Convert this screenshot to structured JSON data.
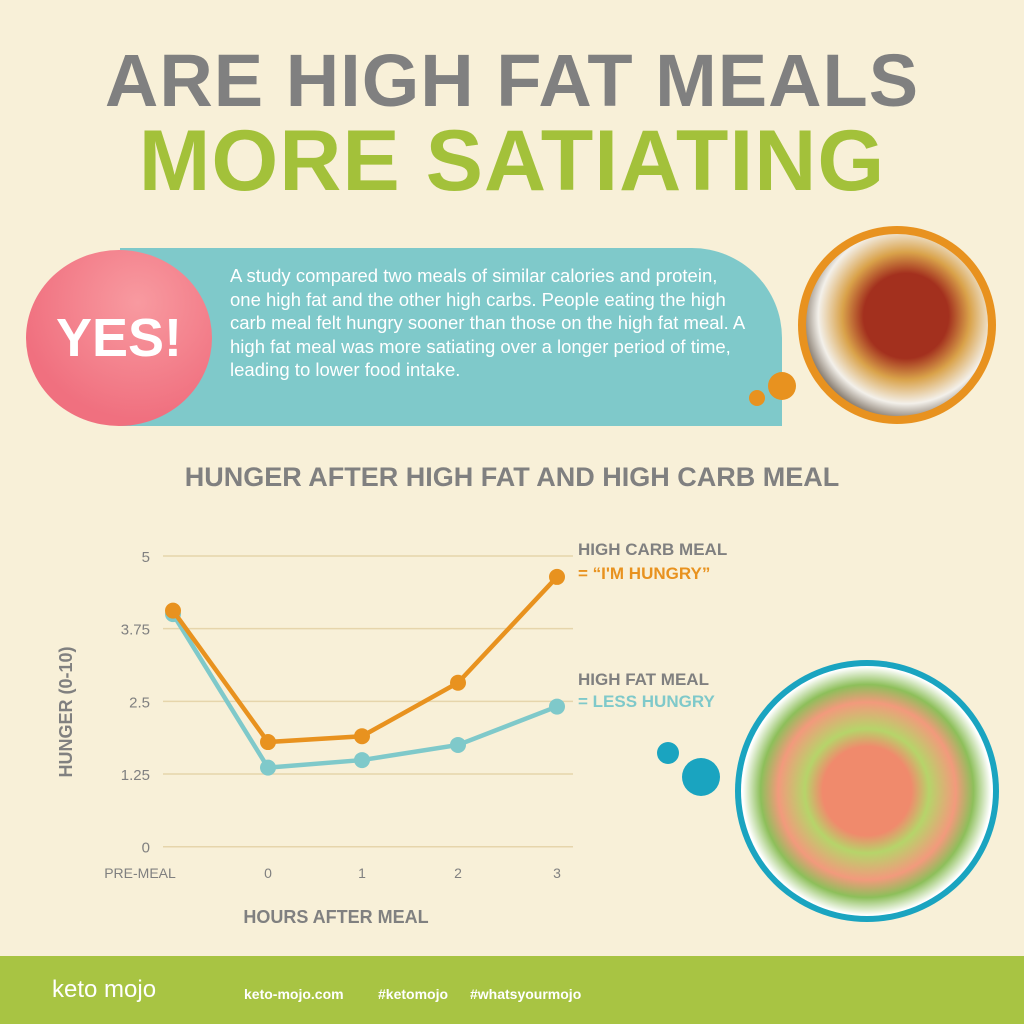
{
  "title": {
    "line1": "ARE HIGH FAT MEALS",
    "line2": "MORE SATIATING"
  },
  "answer": "YES!",
  "description": "A study compared two meals of similar calories and protein, one high fat and the other high carbs. People eating the high carb meal felt hungry sooner than those on the high fat meal. A high fat meal was more satiating over a longer period of time, leading to lower food intake.",
  "colors": {
    "orange": "#e8921f",
    "teal": "#7fc9ca",
    "green": "#a3c13a",
    "gray": "#808080",
    "pink": "#f0707f"
  },
  "chart_data": {
    "type": "line",
    "title": "HUNGER AFTER HIGH FAT AND HIGH CARB MEAL",
    "xlabel": "HOURS AFTER MEAL",
    "ylabel": "HUNGER (0-10)",
    "categories": [
      "PRE-MEAL",
      "0",
      "1",
      "2",
      "3"
    ],
    "yticks": [
      "0",
      "1.25",
      "2.5",
      "3.75",
      "5"
    ],
    "ylim": [
      0,
      5
    ],
    "grid": true,
    "series": [
      {
        "name": "HIGH CARB MEAL",
        "annotation": "= “I'M HUNGRY”",
        "color": "#e8921f",
        "values": [
          4.06,
          1.8,
          1.9,
          2.82,
          4.64
        ]
      },
      {
        "name": "HIGH FAT MEAL",
        "annotation": "= LESS HUNGRY",
        "color": "#7fc9ca",
        "values": [
          4.0,
          1.36,
          1.49,
          1.75,
          2.41
        ]
      }
    ]
  },
  "footer": {
    "logo": "keto mojo",
    "site": "keto-mojo.com",
    "tag1": "#ketomojo",
    "tag2": "#whatsyourmojo"
  }
}
